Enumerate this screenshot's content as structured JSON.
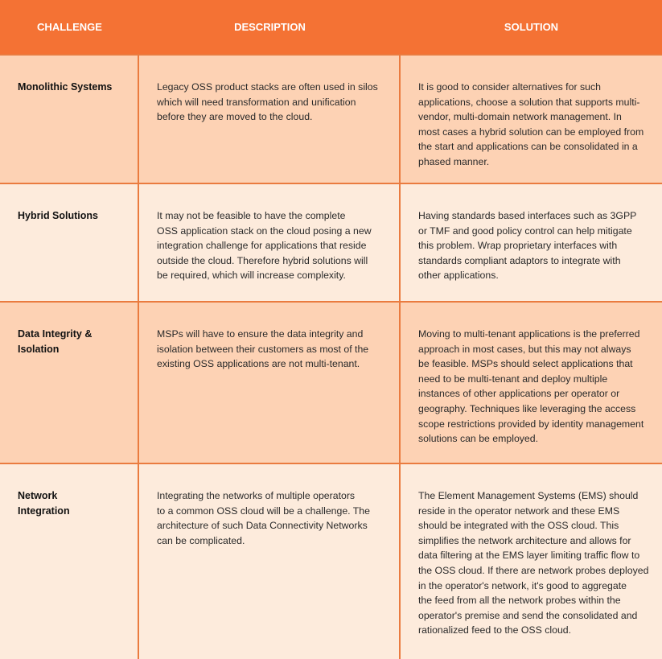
{
  "header": {
    "challenge": "CHALLENGE",
    "description": "DESCRIPTION",
    "solution": "SOLUTION"
  },
  "colors": {
    "header": "#f47234",
    "row_dark": "#fdd2b4",
    "row_light": "#fdebdc",
    "border": "#ea7b3f"
  },
  "rows": [
    {
      "challenge": [
        "Monolithic Systems"
      ],
      "description": [
        "Legacy OSS product stacks are often used in silos",
        "which will need transformation and unification",
        "before they are moved to the cloud."
      ],
      "solution": [
        "It is good to consider alternatives for such",
        "applications, choose a solution that supports multi-",
        "vendor, multi-domain network management. In",
        "most cases a hybrid solution can be employed from",
        "the start and applications can be consolidated in a",
        "phased manner."
      ]
    },
    {
      "challenge": [
        "Hybrid Solutions"
      ],
      "description": [
        "It may not be feasible to have the complete",
        "OSS application stack on the cloud posing a new",
        "integration challenge for applications that reside",
        "outside the cloud. Therefore hybrid solutions will",
        "be required, which will increase complexity."
      ],
      "solution": [
        "Having standards based interfaces such as 3GPP",
        "or TMF and good policy control can help mitigate",
        "this problem. Wrap proprietary interfaces with",
        "standards compliant adaptors to integrate with",
        "other applications."
      ]
    },
    {
      "challenge": [
        "Data Integrity &",
        "Isolation"
      ],
      "description": [
        "MSPs will have to ensure the data integrity and",
        "isolation between their customers as most of the",
        "existing OSS applications are not multi-tenant."
      ],
      "solution": [
        "Moving to multi-tenant applications is the preferred",
        "approach in most cases, but this may not always",
        "be feasible. MSPs should select applications that",
        "need to be multi-tenant and deploy multiple",
        "instances of other applications per operator or",
        "geography. Techniques like leveraging the access",
        "scope restrictions provided by identity management",
        "solutions can be employed."
      ]
    },
    {
      "challenge": [
        "Network",
        "Integration"
      ],
      "description": [
        "Integrating the networks of multiple operators",
        "to a common OSS cloud will be a challenge. The",
        "architecture of such Data Connectivity Networks",
        "can be complicated."
      ],
      "solution": [
        "The Element Management Systems (EMS) should",
        "reside in the operator network and these EMS",
        "should be integrated with the OSS cloud. This",
        "simplifies the network architecture and allows for",
        "data filtering at the EMS layer limiting traffic flow to",
        "the OSS cloud. If there are network probes deployed",
        "in the operator's network, it's good to aggregate",
        "the feed from all the network probes within the",
        "operator's premise and send the consolidated and",
        "rationalized feed to the OSS cloud."
      ]
    }
  ]
}
